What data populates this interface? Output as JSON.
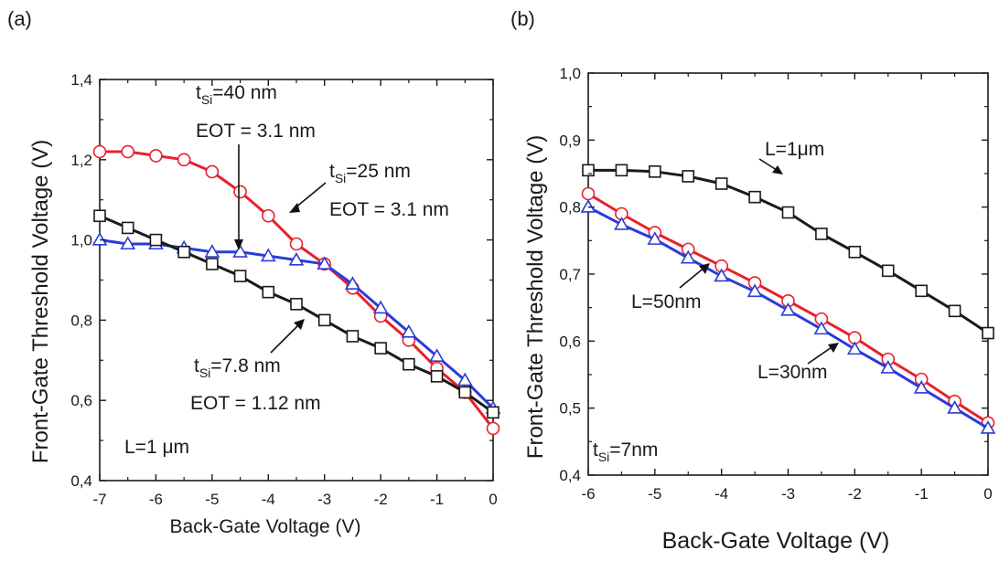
{
  "chart_data": [
    {
      "type": "line",
      "panel_label": "(a)",
      "xlabel": "Back-Gate Voltage (V)",
      "ylabel": "Front-Gate Threshold Voltage (V)",
      "xlim": [
        -7,
        0
      ],
      "ylim": [
        0.4,
        1.4
      ],
      "xticks": [
        -7,
        -6,
        -5,
        -4,
        -3,
        -2,
        -1,
        0
      ],
      "yticks": [
        0.4,
        0.6,
        0.8,
        1.0,
        1.2,
        1.4
      ],
      "xtick_labels": [
        "-7",
        "-6",
        "-5",
        "-4",
        "-3",
        "-2",
        "-1",
        "0"
      ],
      "ytick_labels": [
        "0,4",
        "0,6",
        "0,8",
        "1,0",
        "1,2",
        "1,4"
      ],
      "grid": false,
      "series": [
        {
          "marker": "circle",
          "color": "#e8202a",
          "x": [
            -7,
            -6.5,
            -6,
            -5.5,
            -5,
            -4.5,
            -4,
            -3.5,
            -3,
            -2.5,
            -2,
            -1.5,
            -1,
            -0.5,
            0
          ],
          "y": [
            1.22,
            1.22,
            1.21,
            1.2,
            1.17,
            1.12,
            1.06,
            0.99,
            0.94,
            0.88,
            0.81,
            0.75,
            0.68,
            0.62,
            0.53
          ]
        },
        {
          "marker": "triangle",
          "color": "#2b3bd9",
          "x": [
            -7,
            -6.5,
            -6,
            -5.5,
            -5,
            -4.5,
            -4,
            -3.5,
            -3,
            -2.5,
            -2,
            -1.5,
            -1,
            -0.5,
            0
          ],
          "y": [
            1.0,
            0.99,
            0.99,
            0.98,
            0.97,
            0.97,
            0.96,
            0.95,
            0.94,
            0.89,
            0.83,
            0.77,
            0.71,
            0.65,
            0.58
          ]
        },
        {
          "marker": "square",
          "color": "#1a1a1a",
          "x": [
            -7,
            -6.5,
            -6,
            -5.5,
            -5,
            -4.5,
            -4,
            -3.5,
            -3,
            -2.5,
            -2,
            -1.5,
            -1,
            -0.5,
            0
          ],
          "y": [
            1.06,
            1.03,
            1.0,
            0.97,
            0.94,
            0.91,
            0.87,
            0.84,
            0.8,
            0.76,
            0.73,
            0.69,
            0.66,
            0.62,
            0.57
          ]
        }
      ],
      "annotations": [
        {
          "text": "t",
          "sub": "Si",
          "rest": "=40 nm"
        },
        {
          "text": "EOT = 3.1 nm"
        },
        {
          "text": "t",
          "sub": "Si",
          "rest": "=25 nm"
        },
        {
          "text": "EOT = 3.1 nm"
        },
        {
          "text": "t",
          "sub": "Si",
          "rest": "=7.8 nm"
        },
        {
          "text": "EOT = 1.12 nm"
        },
        {
          "text": "L=1 μm"
        }
      ]
    },
    {
      "type": "line",
      "panel_label": "(b)",
      "xlabel": "Back-Gate Voltage (V)",
      "ylabel": "Front-Gate Threshold Voltage (V)",
      "xlim": [
        -6,
        0
      ],
      "ylim": [
        0.4,
        1.0
      ],
      "xticks": [
        -6,
        -5,
        -4,
        -3,
        -2,
        -1,
        0
      ],
      "yticks": [
        0.4,
        0.5,
        0.6,
        0.7,
        0.8,
        0.9,
        1.0
      ],
      "xtick_labels": [
        "-6",
        "-5",
        "-4",
        "-3",
        "-2",
        "-1",
        "0"
      ],
      "ytick_labels": [
        "0,4",
        "0,5",
        "0,6",
        "0,7",
        "0,8",
        "0,9",
        "1,0"
      ],
      "grid": false,
      "series": [
        {
          "marker": "square",
          "color": "#1a1a1a",
          "x": [
            -6,
            -5.5,
            -5,
            -4.5,
            -4,
            -3.5,
            -3,
            -2.5,
            -2,
            -1.5,
            -1,
            -0.5,
            0
          ],
          "y": [
            0.855,
            0.855,
            0.853,
            0.846,
            0.835,
            0.815,
            0.792,
            0.76,
            0.733,
            0.705,
            0.675,
            0.645,
            0.612
          ]
        },
        {
          "marker": "circle",
          "color": "#e8202a",
          "x": [
            -6,
            -5.5,
            -5,
            -4.5,
            -4,
            -3.5,
            -3,
            -2.5,
            -2,
            -1.5,
            -1,
            -0.5,
            0
          ],
          "y": [
            0.82,
            0.79,
            0.762,
            0.737,
            0.712,
            0.687,
            0.66,
            0.633,
            0.605,
            0.573,
            0.543,
            0.51,
            0.478
          ]
        },
        {
          "marker": "triangle",
          "color": "#2b3bd9",
          "x": [
            -6,
            -5.5,
            -5,
            -4.5,
            -4,
            -3.5,
            -3,
            -2.5,
            -2,
            -1.5,
            -1,
            -0.5,
            0
          ],
          "y": [
            0.8,
            0.774,
            0.752,
            0.724,
            0.697,
            0.674,
            0.646,
            0.618,
            0.588,
            0.56,
            0.53,
            0.5,
            0.47
          ]
        }
      ],
      "annotations": [
        {
          "text": "L=1μm"
        },
        {
          "text": "L=50nm"
        },
        {
          "text": "L=30nm"
        },
        {
          "text": "t",
          "sub": "Si",
          "rest": "=7nm"
        }
      ]
    }
  ]
}
